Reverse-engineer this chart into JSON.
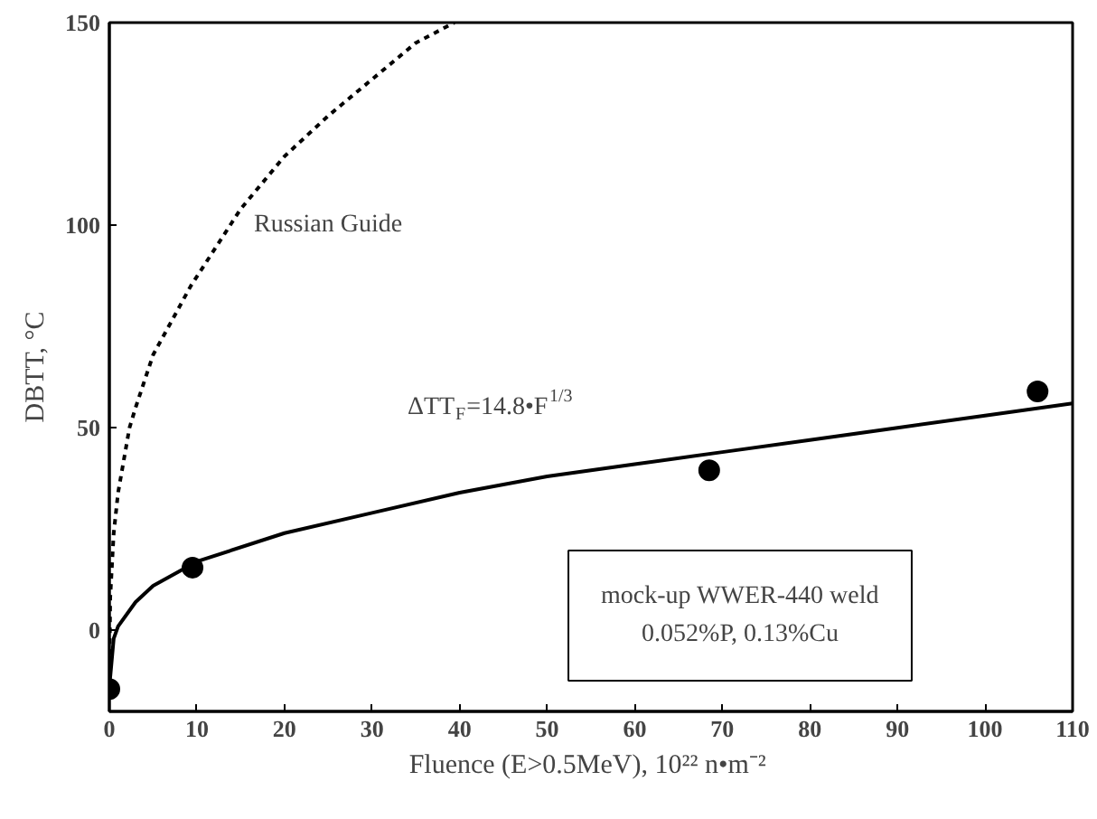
{
  "chart_data": {
    "type": "scatter",
    "xlabel": "Fluence (E>0.5MeV),  10²² n•m⁻²",
    "ylabel": "DBTT, °C",
    "xlim": [
      0,
      110
    ],
    "xticks": [
      0,
      10,
      20,
      30,
      40,
      50,
      60,
      70,
      80,
      90,
      100,
      110
    ],
    "ylim": [
      -20,
      150
    ],
    "yticks": [
      0,
      50,
      100,
      150
    ],
    "grid": false,
    "marker": "circle",
    "series": [
      {
        "color": "#000000",
        "x": [
          0,
          9.5,
          68.5,
          106
        ],
        "values": [
          -14.5,
          15.5,
          39.5,
          59
        ]
      },
      {
        "type": "line",
        "color": "#000000",
        "line_style": "solid",
        "marker": "none",
        "x": [
          0,
          0.5,
          1,
          3,
          5,
          10,
          20,
          30,
          40,
          50,
          60,
          70,
          80,
          90,
          100,
          110
        ],
        "values": [
          -14,
          -2,
          1,
          7,
          11,
          17,
          24,
          29,
          34,
          38,
          41,
          44,
          47,
          50,
          53,
          56
        ]
      },
      {
        "type": "line",
        "color": "#000000",
        "line_style": "dotted",
        "marker": "none",
        "x": [
          0,
          0.1,
          0.5,
          1,
          2.3,
          3,
          5,
          9.3,
          15,
          20,
          25,
          30,
          35,
          39.4
        ],
        "values": [
          -14,
          8,
          24,
          34,
          50,
          55,
          68,
          85,
          104,
          117,
          127,
          136,
          145,
          150
        ]
      }
    ],
    "annotations": [
      "Russian Guide",
      "ΔTT$_{F}$=14.8•F$^{1/3}$",
      "mock-up WWER-440 weld\n0.052%P, 0.13%Cu"
    ]
  }
}
